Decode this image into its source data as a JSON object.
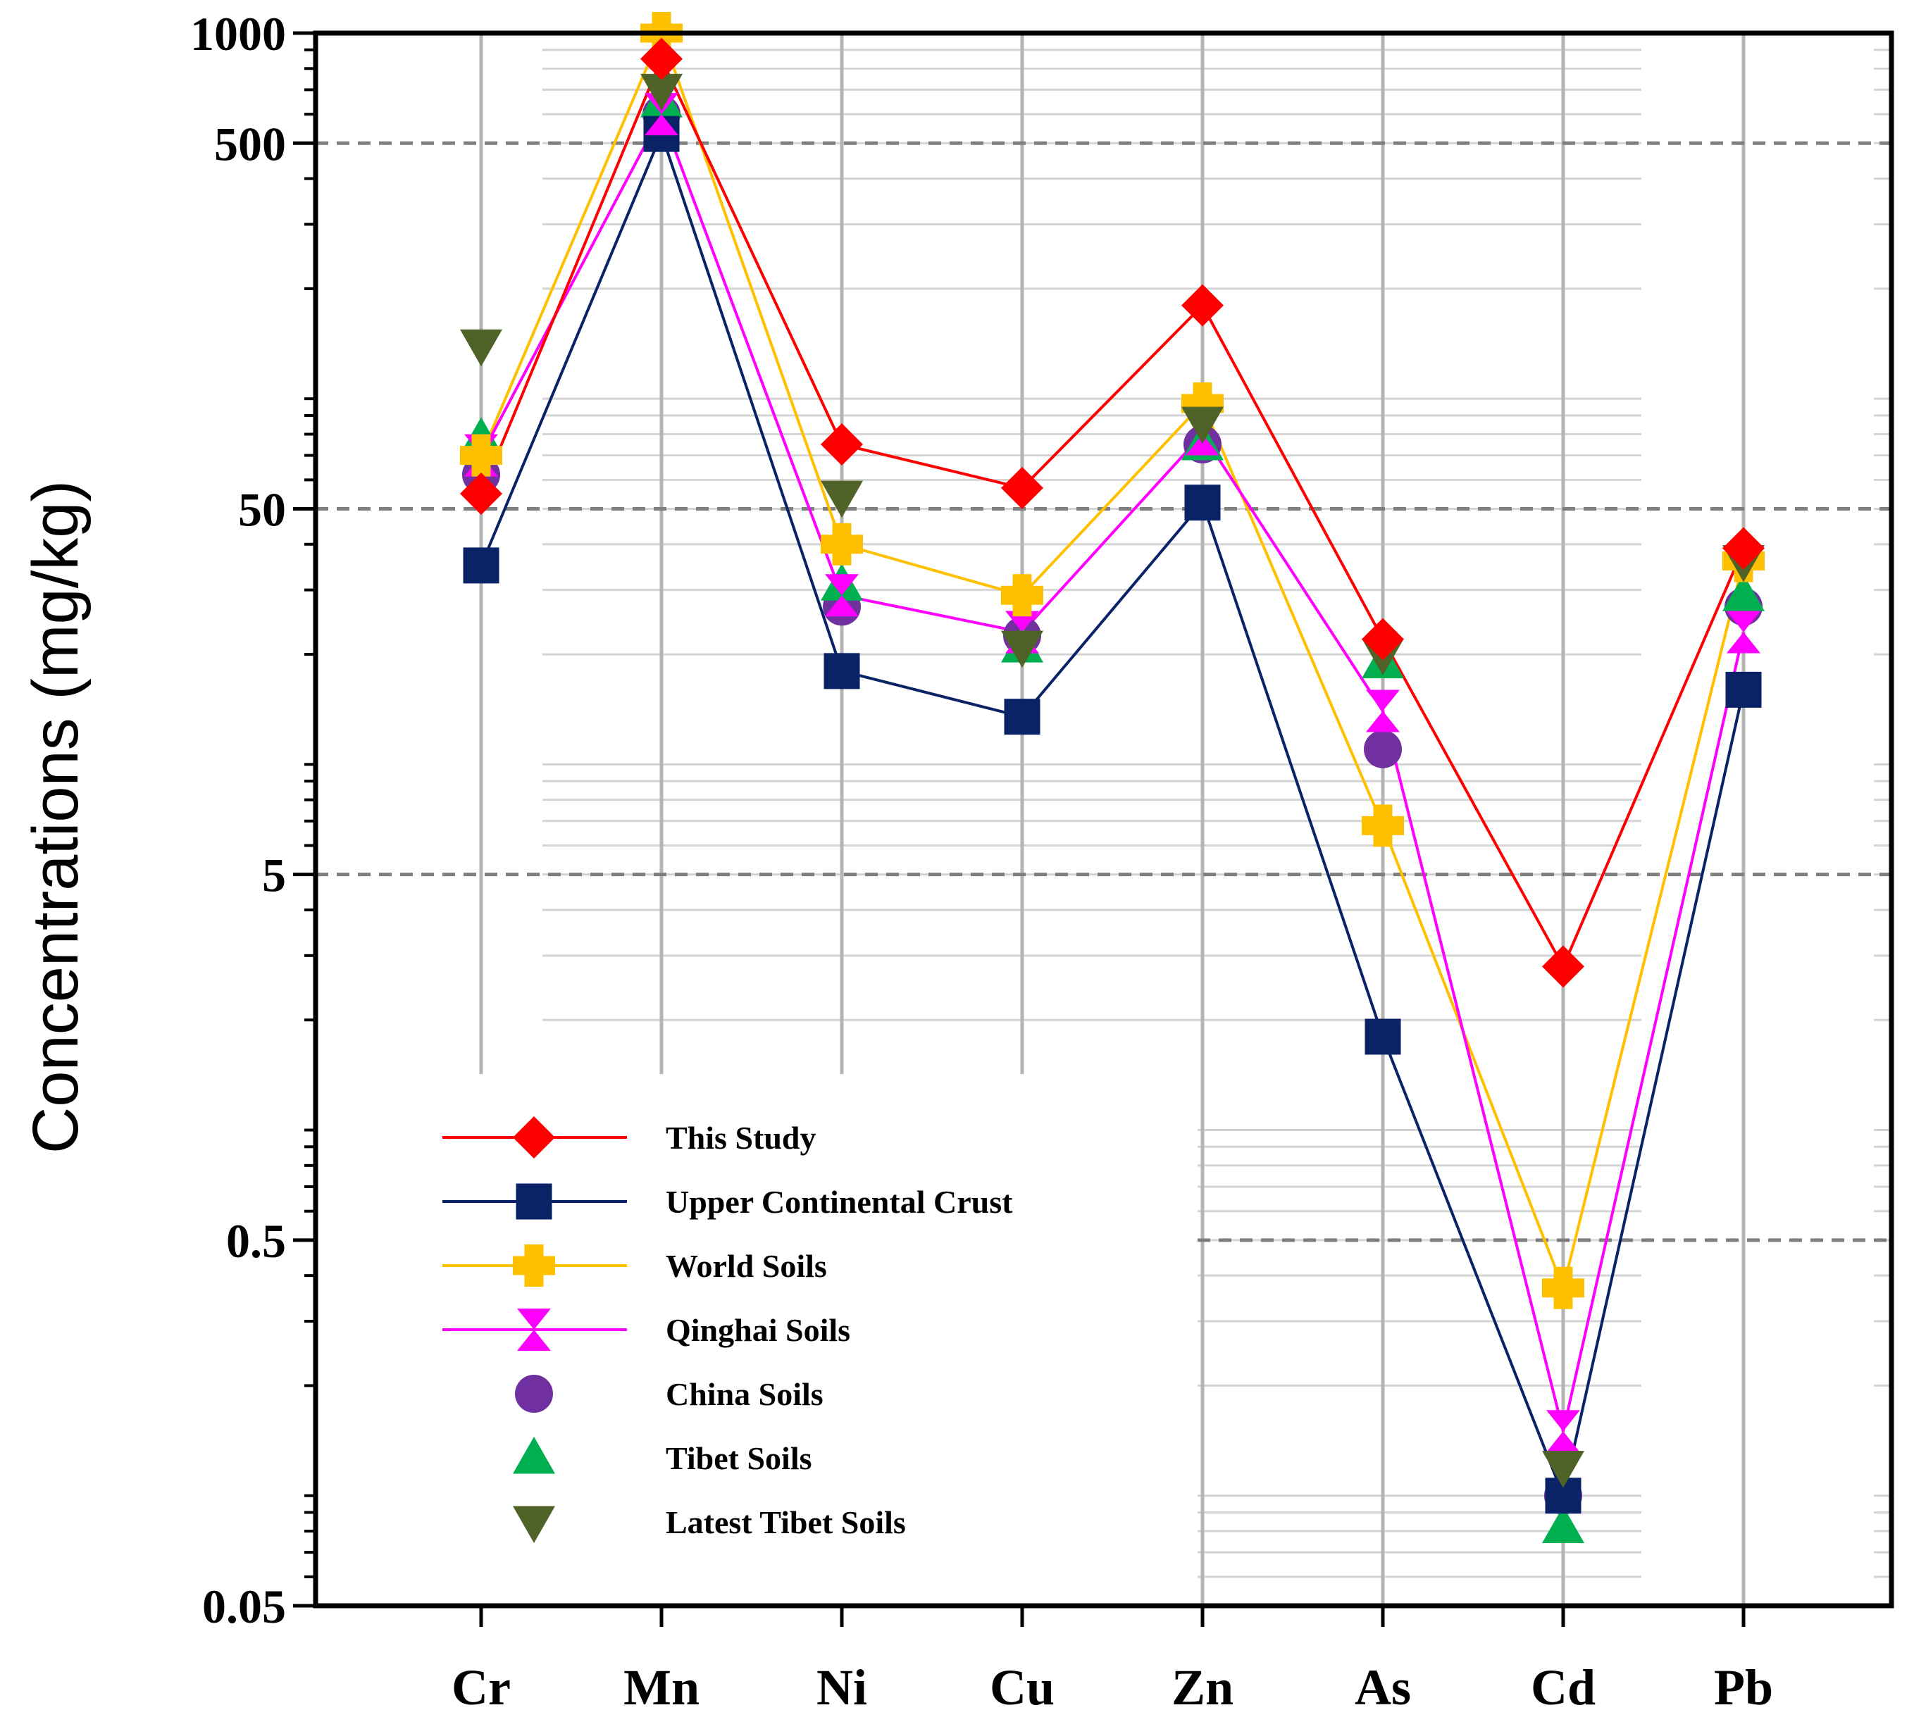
{
  "chart_data": {
    "type": "line",
    "scale": "log",
    "ylabel": "Concentrations  (mg/kg)",
    "xlabel": "",
    "ylim": [
      0.05,
      1000
    ],
    "yticks": [
      {
        "value": 1000,
        "label": "1000"
      },
      {
        "value": 500,
        "label": "500"
      },
      {
        "value": 50,
        "label": "50"
      },
      {
        "value": 5,
        "label": "5"
      },
      {
        "value": 0.5,
        "label": "0.5"
      },
      {
        "value": 0.05,
        "label": "0.05"
      }
    ],
    "dashed_reference_lines": [
      500,
      50,
      5,
      0.5
    ],
    "categories": [
      "Cr",
      "Mn",
      "Ni",
      "Cu",
      "Zn",
      "As",
      "Cd",
      "Pb"
    ],
    "series": [
      {
        "name": "This Study",
        "color": "#ff0000",
        "marker": "diamond",
        "line": true,
        "values": [
          55,
          850,
          75,
          57,
          180,
          22,
          2.8,
          39
        ]
      },
      {
        "name": "Upper Continental Crust",
        "color": "#0a2366",
        "marker": "square",
        "line": true,
        "values": [
          35,
          530,
          18,
          13.5,
          52,
          1.8,
          0.1,
          16
        ]
      },
      {
        "name": "World Soils",
        "color": "#ffc000",
        "marker": "plus",
        "line": true,
        "values": [
          70,
          1000,
          40,
          29,
          97,
          6.8,
          0.37,
          36
        ]
      },
      {
        "name": "Qinghai Soils",
        "color": "#ff00ff",
        "marker": "bowtie",
        "line": true,
        "values": [
          70,
          600,
          29,
          23,
          80,
          14,
          0.15,
          23
        ]
      },
      {
        "name": "China Soils",
        "color": "#7030a0",
        "marker": "circle",
        "line": false,
        "values": [
          62,
          600,
          27,
          22.5,
          75,
          11,
          0.1,
          27
        ]
      },
      {
        "name": "Tibet Soils",
        "color": "#00b050",
        "marker": "triangle-up",
        "line": false,
        "values": [
          78,
          650,
          31,
          21,
          75,
          19,
          0.082,
          29
        ]
      },
      {
        "name": "Latest Tibet Soils",
        "color": "#4f6228",
        "marker": "triangle-down",
        "line": false,
        "values": [
          140,
          700,
          54,
          21,
          86,
          20,
          0.12,
          36
        ]
      }
    ]
  }
}
